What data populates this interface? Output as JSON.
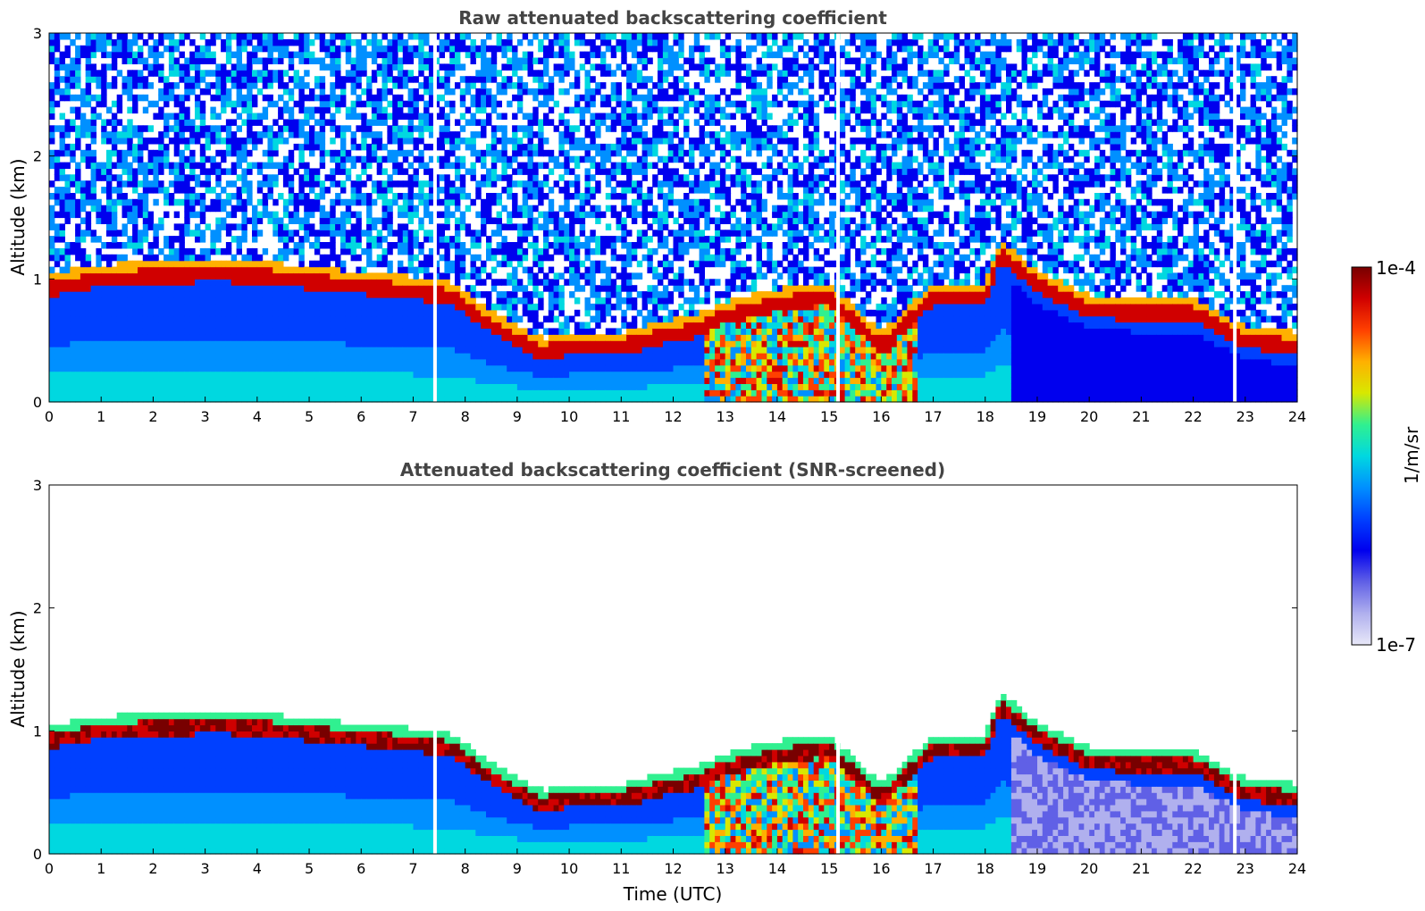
{
  "chart_data": [
    {
      "type": "heatmap",
      "title": "Raw attenuated backscattering coefficient",
      "xlabel": "",
      "ylabel": "Altitude (km)",
      "xlim": [
        0,
        24
      ],
      "ylim": [
        0,
        3
      ],
      "xticks": [
        "0",
        "1",
        "2",
        "3",
        "4",
        "5",
        "6",
        "7",
        "8",
        "9",
        "10",
        "11",
        "12",
        "13",
        "14",
        "15",
        "16",
        "17",
        "18",
        "19",
        "20",
        "21",
        "22",
        "23",
        "24"
      ],
      "yticks": [
        "0",
        "1",
        "2",
        "3"
      ],
      "layer_top_km": [
        [
          0,
          0.92
        ],
        [
          1,
          1.0
        ],
        [
          2,
          1.02
        ],
        [
          3,
          1.04
        ],
        [
          4,
          1.03
        ],
        [
          5,
          0.98
        ],
        [
          6,
          0.94
        ],
        [
          7,
          0.9
        ],
        [
          7.8,
          0.85
        ],
        [
          8.2,
          0.7
        ],
        [
          9,
          0.5
        ],
        [
          9.5,
          0.4
        ],
        [
          10,
          0.45
        ],
        [
          11,
          0.45
        ],
        [
          12,
          0.55
        ],
        [
          12.5,
          0.6
        ],
        [
          13,
          0.7
        ],
        [
          14,
          0.8
        ],
        [
          15,
          0.85
        ],
        [
          16,
          0.45
        ],
        [
          17,
          0.85
        ],
        [
          18,
          0.85
        ],
        [
          18.3,
          1.2
        ],
        [
          19,
          0.95
        ],
        [
          20,
          0.75
        ],
        [
          21,
          0.72
        ],
        [
          22,
          0.72
        ],
        [
          23,
          0.5
        ],
        [
          24,
          0.45
        ]
      ],
      "noise": "high above layer"
    },
    {
      "type": "heatmap",
      "title": "Attenuated backscattering coefficient (SNR-screened)",
      "xlabel": "Time (UTC)",
      "ylabel": "Altitude (km)",
      "xlim": [
        0,
        24
      ],
      "ylim": [
        0,
        3
      ],
      "xticks": [
        "0",
        "1",
        "2",
        "3",
        "4",
        "5",
        "6",
        "7",
        "8",
        "9",
        "10",
        "11",
        "12",
        "13",
        "14",
        "15",
        "16",
        "17",
        "18",
        "19",
        "20",
        "21",
        "22",
        "23",
        "24"
      ],
      "yticks": [
        "0",
        "1",
        "2",
        "3"
      ],
      "noise": "removed"
    }
  ],
  "colorbar": {
    "label": "1/m/sr",
    "max_label": "1e-4",
    "min_label": "1e-7",
    "scale": "log",
    "range": [
      1e-07,
      0.0001
    ]
  },
  "colormap": [
    "#e8e8f8",
    "#b0b0ee",
    "#6060e6",
    "#0000ee",
    "#0040ff",
    "#0090ff",
    "#00d8e0",
    "#30f090",
    "#d8e800",
    "#ffb000",
    "#ff4000",
    "#d00000",
    "#780000"
  ]
}
